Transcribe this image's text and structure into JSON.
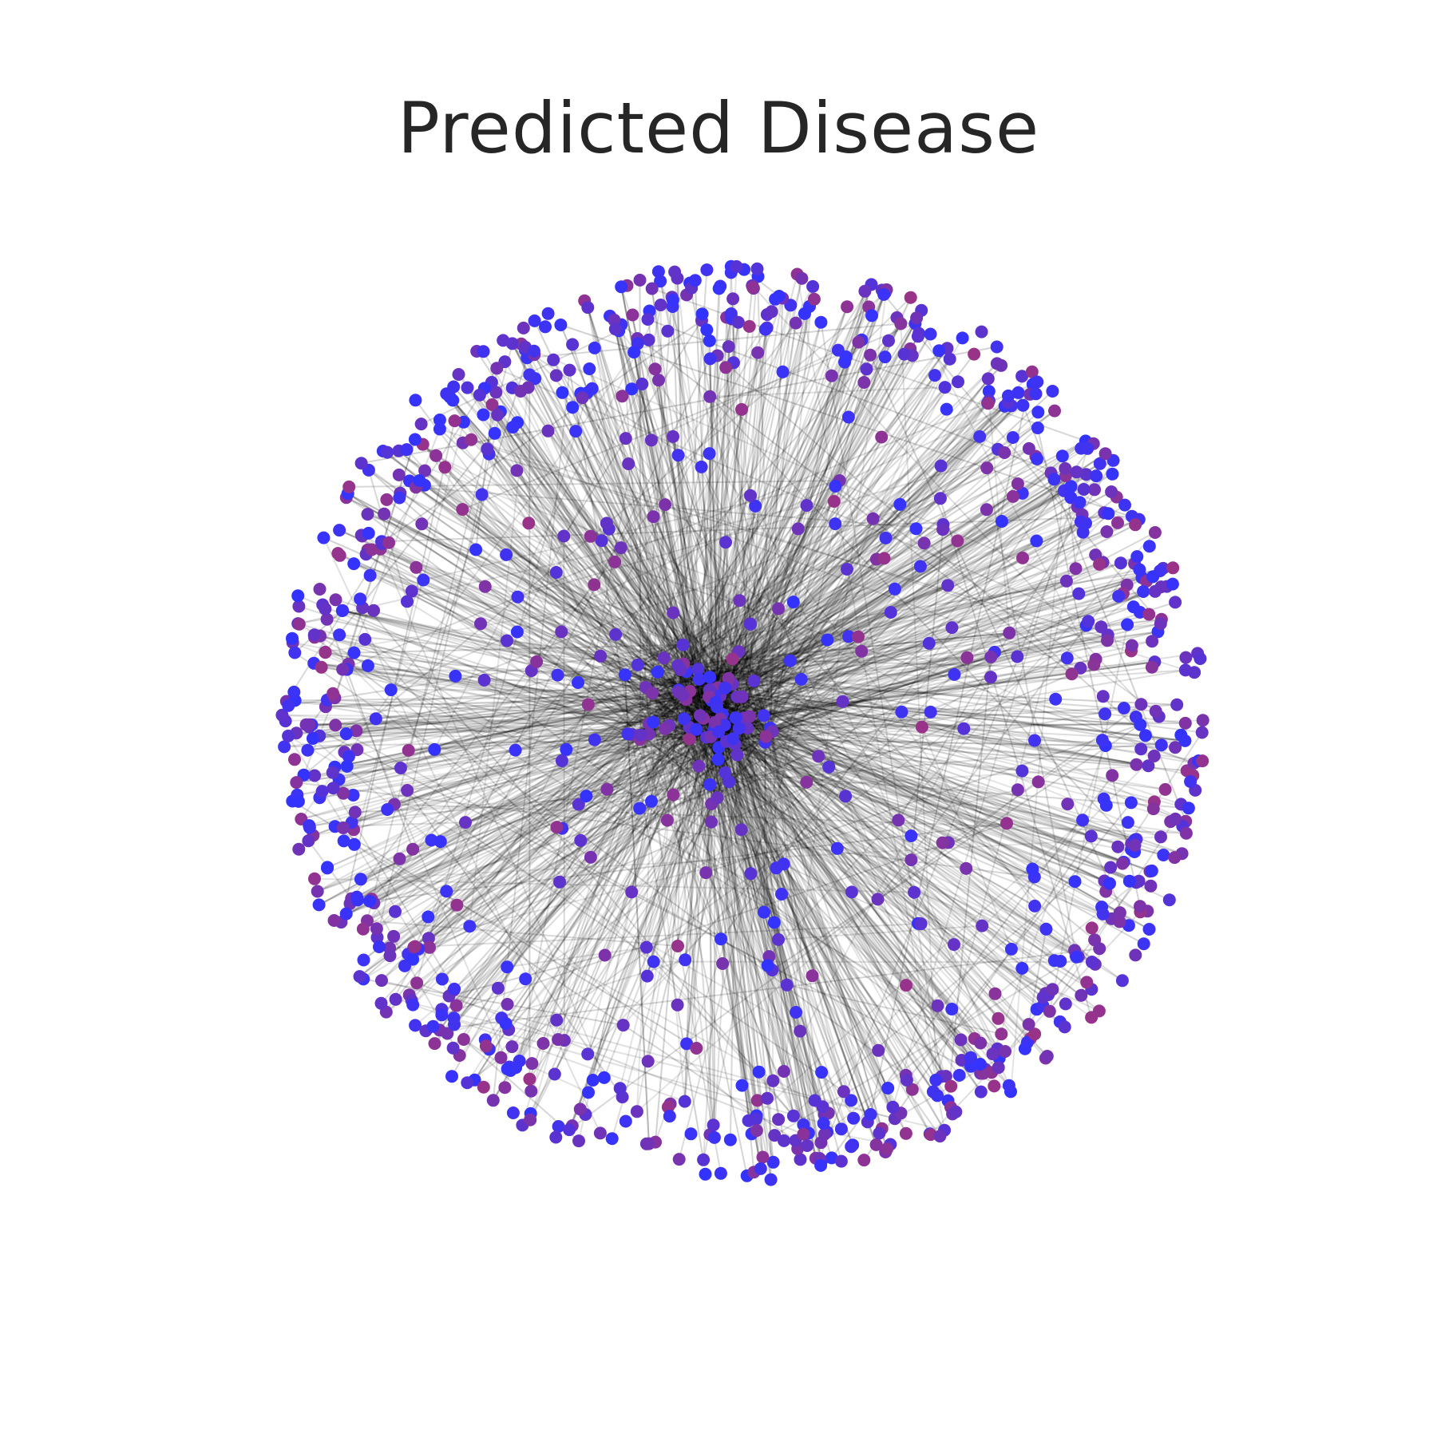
{
  "figure": {
    "title": "Predicted Disease"
  },
  "graph": {
    "layout": "radial hub network",
    "node_count": 1080,
    "edge_count": 1650,
    "colors": {
      "edge": "#000000",
      "node_low": "#3333ff",
      "node_high": "#993388",
      "background": "#ffffff"
    }
  }
}
